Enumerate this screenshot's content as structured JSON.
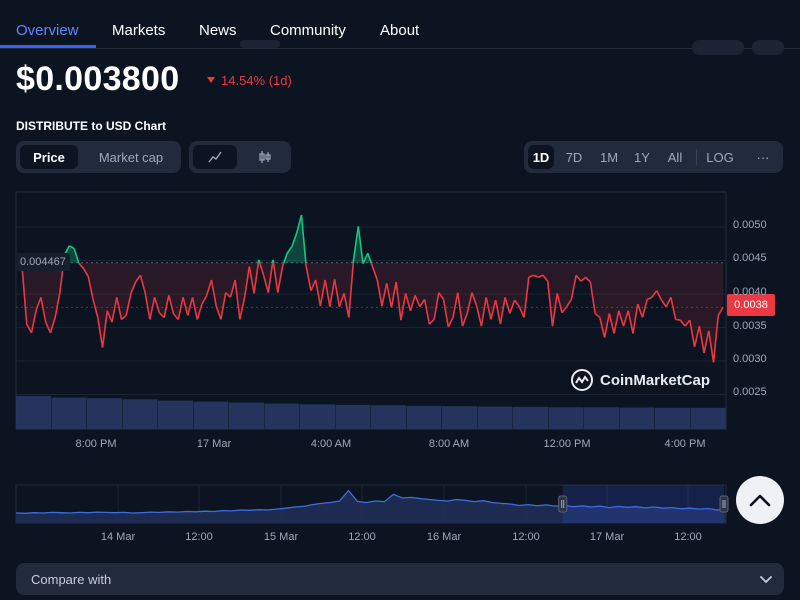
{
  "nav": {
    "tabs": [
      {
        "label": "Overview"
      },
      {
        "label": "Markets"
      },
      {
        "label": "News"
      },
      {
        "label": "Community"
      },
      {
        "label": "About"
      }
    ]
  },
  "price": {
    "value": "$0.003800",
    "change": "14.54% (1d)",
    "change_color": "#ea3943"
  },
  "chart_title": "DISTRIBUTE to USD Chart",
  "toggles": {
    "metric": [
      "Price",
      "Market cap"
    ],
    "metric_selected": "Price",
    "chart_style_icons": [
      "line-chart-icon",
      "candlestick-icon"
    ],
    "chart_style_selected": "line-chart-icon"
  },
  "ranges": {
    "options": [
      "1D",
      "7D",
      "1M",
      "1Y",
      "All",
      "LOG"
    ],
    "selected": "1D",
    "more": "···"
  },
  "watermark": "CoinMarketCap",
  "scroll_top_icon": "chevron-up-icon",
  "compare": {
    "label": "Compare with",
    "icon": "chevron-down-icon"
  },
  "colors": {
    "up": "#16c784",
    "down": "#ea3943",
    "accent": "#3861fb",
    "navigator_line": "#3d6ee0"
  },
  "chart_data": [
    {
      "type": "line",
      "title": "DISTRIBUTE to USD Chart",
      "xlabel": "",
      "ylabel": "",
      "ylim": [
        0.0021,
        0.0056
      ],
      "y_ticks": [
        "0.0050",
        "0.0045",
        "0.0040",
        "0.0035",
        "0.0030",
        "0.0025"
      ],
      "x_ticks": [
        "8:00 PM",
        "17 Mar",
        "4:00 AM",
        "8:00 AM",
        "12:00 PM",
        "4:00 PM"
      ],
      "reference_line": {
        "value": 0.004467,
        "label": "0.004467"
      },
      "current_price": {
        "value": 0.0038,
        "label": "0.0038"
      },
      "grid": true,
      "series": [
        {
          "values": [
            0.00442,
            0.00355,
            0.00342,
            0.00376,
            0.00395,
            0.00358,
            0.00342,
            0.00365,
            0.00402,
            0.00459,
            0.00472,
            0.00468,
            0.00446,
            0.00438,
            0.00426,
            0.00392,
            0.00365,
            0.0032,
            0.00375,
            0.00358,
            0.00395,
            0.00362,
            0.00368,
            0.00401,
            0.00418,
            0.00428,
            0.00402,
            0.00362,
            0.00395,
            0.00372,
            0.00365,
            0.00398,
            0.0037,
            0.00362,
            0.00395,
            0.00368,
            0.00395,
            0.00362,
            0.00385,
            0.00398,
            0.00421,
            0.00382,
            0.00362,
            0.00402,
            0.00395,
            0.00421,
            0.00362,
            0.00395,
            0.00441,
            0.00401,
            0.00451,
            0.00428,
            0.00402,
            0.00451,
            0.00402,
            0.00441,
            0.00461,
            0.00471,
            0.00491,
            0.00518,
            0.00441,
            0.00405,
            0.00421,
            0.00382,
            0.00421,
            0.00381,
            0.00422,
            0.00381,
            0.00401,
            0.00365,
            0.00451,
            0.00501,
            0.00445,
            0.00461,
            0.00441,
            0.00421,
            0.00382,
            0.00416,
            0.0038,
            0.00418,
            0.00361,
            0.00401,
            0.00375,
            0.00398,
            0.00381,
            0.00392,
            0.00355,
            0.00362,
            0.00402,
            0.00392,
            0.00351,
            0.00365,
            0.00402,
            0.00352,
            0.00371,
            0.00402,
            0.00382,
            0.00352,
            0.00395,
            0.00362,
            0.00391,
            0.00355,
            0.00395,
            0.00371,
            0.00391,
            0.00381,
            0.00365,
            0.00425,
            0.00428,
            0.00425,
            0.00428,
            0.00419,
            0.00352,
            0.00401,
            0.00372,
            0.00381,
            0.00392,
            0.00428,
            0.00419,
            0.00425,
            0.00418,
            0.00371,
            0.00365,
            0.00335,
            0.00371,
            0.00341,
            0.00375,
            0.00352,
            0.00375,
            0.00341,
            0.00385,
            0.00365,
            0.00392,
            0.00395,
            0.00405,
            0.00391,
            0.00381,
            0.00395,
            0.00362,
            0.00361,
            0.00352,
            0.00361,
            0.00321,
            0.00352,
            0.00312,
            0.00345,
            0.00298,
            0.00368,
            0.0038
          ]
        },
        {
          "name": "Volume",
          "type": "area",
          "values": [
            1.0,
            0.95,
            0.93,
            0.9,
            0.86,
            0.83,
            0.8,
            0.77,
            0.75,
            0.73,
            0.72,
            0.7,
            0.69,
            0.68,
            0.67,
            0.66,
            0.66,
            0.65,
            0.64,
            0.64
          ]
        }
      ]
    },
    {
      "type": "area",
      "title": "",
      "x_ticks": [
        "14 Mar",
        "12:00",
        "15 Mar",
        "12:00",
        "16 Mar",
        "12:00",
        "17 Mar",
        "12:00"
      ],
      "selected_range_fraction": [
        0.77,
        1.0
      ],
      "series": [
        {
          "values": [
            0.2,
            0.19,
            0.21,
            0.2,
            0.22,
            0.21,
            0.2,
            0.22,
            0.21,
            0.23,
            0.22,
            0.21,
            0.22,
            0.2,
            0.21,
            0.23,
            0.22,
            0.24,
            0.23,
            0.25,
            0.24,
            0.26,
            0.25,
            0.28,
            0.27,
            0.3,
            0.29,
            0.31,
            0.3,
            0.33,
            0.36,
            0.4,
            0.42,
            0.48,
            0.52,
            0.55,
            0.6,
            0.95,
            0.58,
            0.55,
            0.6,
            0.58,
            0.82,
            0.7,
            0.72,
            0.68,
            0.65,
            0.62,
            0.6,
            0.65,
            0.62,
            0.58,
            0.61,
            0.55,
            0.52,
            0.5,
            0.45,
            0.48,
            0.44,
            0.47,
            0.43,
            0.45,
            0.41,
            0.44,
            0.4,
            0.43,
            0.38,
            0.42,
            0.39,
            0.41,
            0.37,
            0.4,
            0.36,
            0.38,
            0.34,
            0.36,
            0.33,
            0.35,
            0.3,
            0.32
          ]
        }
      ]
    }
  ]
}
